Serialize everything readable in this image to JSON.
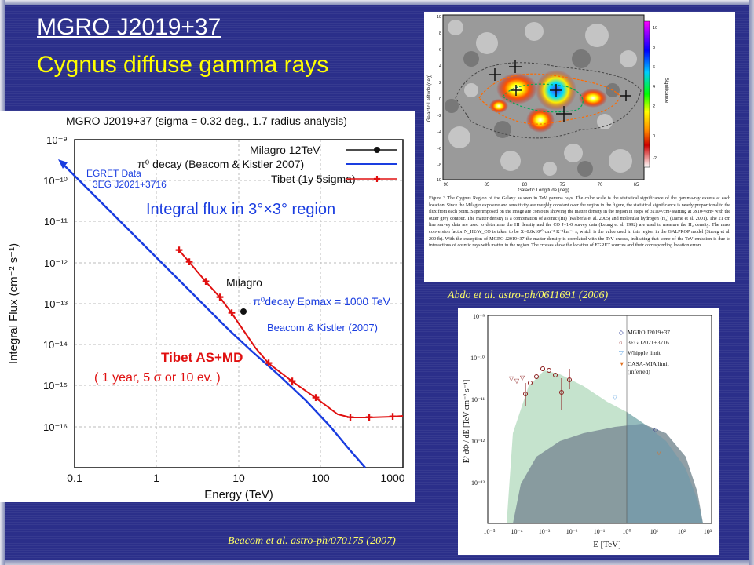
{
  "slide": {
    "title_line1": "MGRO J2019+37",
    "title_line2": "Cygnus diffuse gamma rays",
    "caption_abdo": "Abdo et al. astro-ph/0611691 (2006)",
    "caption_beacom": "Beacom et al. astro-ph/070175 (2007)",
    "colors": {
      "background": "#2b2f8a",
      "title": "#ffffff",
      "subtitle": "#ffff00",
      "caption": "#ffff66"
    }
  },
  "left_plot": {
    "header": "MGRO J2019+37 (sigma = 0.32 deg., 1.7 radius analysis)",
    "overlay_label": "Integral flux in 3°×3° region",
    "legend": [
      "Milagro 12TeV",
      "π⁰ decay (Beacom & Kistler 2007)",
      "Tibet (1y 5sigma)"
    ],
    "egret_label_1": "EGRET Data",
    "egret_label_2": "3EG J2021+3716",
    "milagro_label": "Milagro",
    "pi0_label": "π⁰decay Epmax = 1000 TeV",
    "beacom_label": "Beacom & Kistler (2007)",
    "tibet_label": "Tibet AS+MD",
    "tibet_note": "( 1 year, 5  σ or 10 ev. )",
    "ylabel": "Integral Flux (cm⁻² s⁻¹)",
    "xlabel": "Energy (TeV)",
    "xticks": [
      "0.1",
      "1",
      "10",
      "100",
      "1000"
    ],
    "yticks": [
      "10⁻⁹",
      "10⁻¹⁰",
      "10⁻¹¹",
      "10⁻¹²",
      "10⁻¹³",
      "10⁻¹⁴",
      "10⁻¹⁵",
      "10⁻¹⁶"
    ]
  },
  "sky_map": {
    "ylabel": "Galactic Latitude (deg)",
    "xlabel": "Galactic Longitude (deg)",
    "colorbar_label": "Significance",
    "colorbar_ticks": [
      "10",
      "8",
      "6",
      "4",
      "2",
      "0",
      "-2"
    ],
    "yticks": [
      "10",
      "8",
      "6",
      "4",
      "2",
      "0",
      "-2",
      "-4",
      "-6",
      "-8",
      "-10"
    ],
    "xticks": [
      "90",
      "85",
      "80",
      "75",
      "70",
      "65"
    ],
    "figure_caption": "Figure 3 The Cygnus Region of the Galaxy as seen in TeV gamma rays. The color scale is the statistical significance of the gamma-ray excess at each location. Since the Milagro exposure and sensitivity are roughly constant over the region in the figure, the statistical significance is nearly proportional to the flux from each point. Superimposed on the image are contours showing the matter density in the region in steps of 3x10²¹/cm² starting at 3x10²¹/cm² with the outer grey contour. The matter density is a combination of atomic (HI) (Kalberla et al. 2005) and molecular hydrogen (H₂) (Dame et al. 2001). The 21 cm line survey data are used to determine the HI density and the CO J=1-0 survey data (Leung et al. 1992) are used to measure the H₂ density. The mass conversion factor N_H2/W_CO is taken to be X=0.8x10²⁰ cm⁻² K⁻¹km⁻¹ s, which is the value used in this region in the GALPROP model (Strong et al. 2004b). With the exception of MGRO J2019+37 the matter density is correlated with the TeV excess, indicating that some of the TeV emission is due to interactions of cosmic rays with matter in the region. The crosses show the location of EGRET sources and their corresponding location errors."
  },
  "sed_plot": {
    "legend": [
      "MGRO J2019+37",
      "3EG J2021+3716",
      "Whipple limit",
      "CASA-MIA limit",
      "(inferred)"
    ],
    "ylabel": "E² dΦ / dE  [TeV cm⁻² s⁻¹]",
    "xlabel": "E [TeV]",
    "yticks": [
      "10⁻⁹",
      "10⁻¹⁰",
      "10⁻¹¹",
      "10⁻¹²",
      "10⁻¹³"
    ],
    "xticks": [
      "10⁻⁵",
      "10⁻⁴",
      "10⁻³",
      "10⁻²",
      "10⁻¹",
      "10⁰",
      "10¹",
      "10²",
      "10³"
    ]
  }
}
